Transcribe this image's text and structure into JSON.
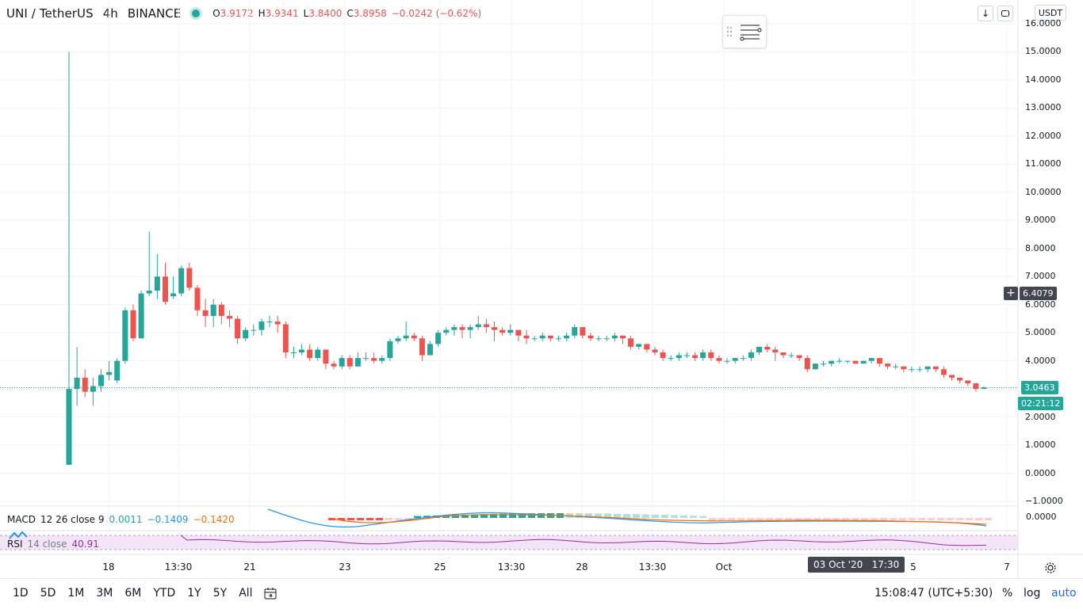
{
  "header": {
    "symbol": "UNI / TetherUS",
    "interval": "4h",
    "exchange": "BINANCE",
    "ohlc": {
      "o_key": "O",
      "o_val": "3.9172",
      "h_key": "H",
      "h_val": "3.9341",
      "l_key": "L",
      "l_val": "3.8400",
      "c_key": "C",
      "c_val": "3.8958",
      "change": "−0.0242 (−0.62%)"
    },
    "currency_button": "USDT",
    "status_color": "#26a69a"
  },
  "price_axis": {
    "ticks": [
      "16.0000",
      "15.0000",
      "14.0000",
      "13.0000",
      "12.0000",
      "11.0000",
      "10.0000",
      "9.0000",
      "8.0000",
      "7.0000",
      "6.0000",
      "5.0000",
      "4.0000",
      "3.0000",
      "2.0000",
      "1.0000",
      "0.0000",
      "−1.0000"
    ],
    "crosshair_price": "6.4079",
    "last_price": "3.0463",
    "countdown": "02:21:12"
  },
  "macd": {
    "name": "MACD",
    "params": "12 26 close 9",
    "v1": "0.0011",
    "v2": "−0.1409",
    "v3": "−0.1420",
    "axis_value": "0.0000"
  },
  "rsi": {
    "name": "RSI",
    "params": "14 close",
    "value": "40.91"
  },
  "time_axis": {
    "labels": [
      "18",
      "13:30",
      "21",
      "23",
      "25",
      "13:30",
      "28",
      "13:30",
      "Oct",
      "5",
      "7"
    ],
    "crosshair_time": "03 Oct '20   17:30"
  },
  "bottom": {
    "ranges": [
      "1D",
      "5D",
      "1M",
      "3M",
      "6M",
      "YTD",
      "1Y",
      "5Y",
      "All"
    ],
    "clock": "15:08:47 (UTC+5:30)",
    "percent": "%",
    "log": "log",
    "auto": "auto"
  },
  "colors": {
    "up": "#26a69a",
    "down": "#ef5350",
    "accent": "#2962ff",
    "rsi": "#9c27b0",
    "macd": "#2196f3",
    "signal": "#ff6d00"
  },
  "chart_data": {
    "type": "candlestick",
    "x": [
      "18",
      "13:30",
      "21",
      "23",
      "25",
      "13:30",
      "28",
      "13:30",
      "Oct",
      "5",
      "7"
    ],
    "ylim": [
      -1,
      16
    ],
    "candles": [
      [
        0.3,
        3.0,
        0.3,
        15.0
      ],
      [
        3.0,
        3.4,
        2.4,
        4.5
      ],
      [
        3.4,
        2.9,
        2.7,
        3.7
      ],
      [
        2.9,
        3.1,
        2.4,
        3.4
      ],
      [
        3.1,
        3.5,
        2.9,
        3.7
      ],
      [
        3.5,
        3.6,
        3.3,
        4.0
      ],
      [
        3.3,
        4.0,
        3.2,
        4.1
      ],
      [
        4.0,
        5.8,
        3.9,
        5.9
      ],
      [
        5.8,
        4.8,
        4.7,
        6.0
      ],
      [
        4.8,
        6.4,
        4.8,
        6.5
      ],
      [
        6.4,
        6.5,
        6.3,
        8.6
      ],
      [
        6.5,
        7.0,
        6.2,
        7.8
      ],
      [
        7.0,
        6.1,
        6.0,
        7.5
      ],
      [
        6.3,
        6.4,
        6.2,
        7.0
      ],
      [
        6.4,
        7.3,
        6.3,
        7.4
      ],
      [
        7.3,
        6.6,
        6.5,
        7.5
      ],
      [
        6.6,
        5.8,
        5.6,
        6.7
      ],
      [
        5.8,
        5.6,
        5.2,
        6.2
      ],
      [
        5.6,
        6.0,
        5.2,
        6.2
      ],
      [
        6.0,
        5.6,
        5.3,
        6.1
      ],
      [
        5.6,
        5.5,
        5.2,
        5.8
      ],
      [
        5.5,
        4.8,
        4.6,
        5.6
      ],
      [
        4.8,
        5.1,
        4.7,
        5.2
      ],
      [
        5.1,
        5.1,
        4.9,
        5.3
      ],
      [
        5.1,
        5.4,
        4.9,
        5.5
      ],
      [
        5.4,
        5.4,
        5.2,
        5.6
      ],
      [
        5.4,
        5.3,
        5.0,
        5.6
      ],
      [
        5.3,
        4.3,
        4.1,
        5.4
      ],
      [
        4.3,
        4.3,
        4.1,
        4.5
      ],
      [
        4.3,
        4.4,
        4.2,
        4.6
      ],
      [
        4.4,
        4.1,
        4.0,
        4.6
      ],
      [
        4.1,
        4.4,
        4.0,
        4.5
      ],
      [
        4.4,
        3.9,
        3.7,
        4.4
      ],
      [
        3.9,
        3.8,
        3.7,
        4.0
      ],
      [
        3.8,
        4.1,
        3.7,
        4.2
      ],
      [
        4.1,
        3.8,
        3.7,
        4.2
      ],
      [
        3.8,
        4.1,
        3.8,
        4.3
      ],
      [
        4.1,
        4.1,
        4.0,
        4.3
      ],
      [
        4.1,
        4.0,
        3.9,
        4.3
      ],
      [
        4.0,
        4.1,
        3.9,
        4.2
      ],
      [
        4.1,
        4.7,
        4.0,
        4.8
      ],
      [
        4.7,
        4.8,
        4.6,
        4.9
      ],
      [
        4.8,
        4.9,
        4.7,
        5.4
      ],
      [
        4.9,
        4.8,
        4.7,
        5.0
      ],
      [
        4.8,
        4.2,
        4.0,
        4.9
      ],
      [
        4.2,
        4.6,
        4.2,
        4.7
      ],
      [
        4.6,
        5.0,
        4.5,
        5.1
      ],
      [
        5.0,
        5.1,
        4.9,
        5.2
      ],
      [
        5.1,
        5.2,
        4.9,
        5.3
      ],
      [
        5.2,
        5.1,
        4.8,
        5.3
      ],
      [
        5.1,
        5.2,
        4.8,
        5.3
      ],
      [
        5.2,
        5.3,
        5.1,
        5.6
      ],
      [
        5.3,
        5.2,
        5.0,
        5.5
      ],
      [
        5.2,
        5.1,
        4.7,
        5.4
      ],
      [
        5.1,
        5.0,
        4.9,
        5.2
      ],
      [
        5.0,
        5.1,
        4.9,
        5.3
      ],
      [
        5.1,
        4.9,
        4.7,
        5.1
      ],
      [
        4.9,
        4.8,
        4.6,
        5.1
      ],
      [
        4.8,
        4.8,
        4.7,
        4.9
      ],
      [
        4.8,
        4.9,
        4.7,
        5.0
      ],
      [
        4.9,
        4.8,
        4.7,
        4.9
      ],
      [
        4.8,
        4.8,
        4.7,
        4.9
      ],
      [
        4.8,
        4.9,
        4.7,
        5.0
      ],
      [
        4.9,
        5.2,
        4.8,
        5.3
      ],
      [
        5.2,
        4.9,
        4.8,
        5.2
      ],
      [
        4.9,
        4.8,
        4.7,
        5.0
      ],
      [
        4.8,
        4.8,
        4.7,
        4.9
      ],
      [
        4.8,
        4.8,
        4.7,
        4.9
      ],
      [
        4.8,
        4.9,
        4.7,
        5.0
      ],
      [
        4.9,
        4.8,
        4.6,
        4.9
      ],
      [
        4.8,
        4.5,
        4.4,
        4.9
      ],
      [
        4.5,
        4.6,
        4.4,
        4.6
      ],
      [
        4.6,
        4.4,
        4.3,
        4.6
      ],
      [
        4.4,
        4.3,
        4.2,
        4.5
      ],
      [
        4.3,
        4.1,
        4.0,
        4.4
      ],
      [
        4.1,
        4.1,
        4.0,
        4.2
      ],
      [
        4.1,
        4.2,
        4.0,
        4.3
      ],
      [
        4.2,
        4.2,
        4.1,
        4.3
      ],
      [
        4.2,
        4.1,
        4.0,
        4.3
      ],
      [
        4.1,
        4.3,
        4.0,
        4.4
      ],
      [
        4.3,
        4.1,
        4.0,
        4.4
      ],
      [
        4.1,
        4.0,
        3.9,
        4.2
      ],
      [
        4.0,
        4.0,
        3.9,
        4.1
      ],
      [
        4.0,
        4.1,
        3.9,
        4.1
      ],
      [
        4.1,
        4.1,
        4.0,
        4.2
      ],
      [
        4.1,
        4.3,
        4.0,
        4.4
      ],
      [
        4.3,
        4.5,
        4.2,
        4.5
      ],
      [
        4.5,
        4.4,
        4.3,
        4.6
      ],
      [
        4.4,
        4.3,
        4.0,
        4.5
      ],
      [
        4.3,
        4.2,
        4.1,
        4.3
      ],
      [
        4.2,
        4.2,
        4.1,
        4.3
      ],
      [
        4.2,
        4.1,
        4.0,
        4.2
      ],
      [
        4.1,
        3.7,
        3.6,
        4.2
      ],
      [
        3.7,
        3.9,
        3.7,
        3.9
      ],
      [
        3.9,
        3.9,
        3.8,
        4.0
      ],
      [
        3.9,
        4.0,
        3.8,
        4.0
      ],
      [
        4.0,
        4.0,
        3.9,
        4.1
      ],
      [
        4.0,
        4.0,
        3.9,
        4.0
      ],
      [
        4.0,
        3.9,
        3.9,
        4.0
      ],
      [
        3.9,
        4.0,
        3.9,
        4.0
      ],
      [
        4.0,
        4.1,
        3.9,
        4.1
      ],
      [
        4.1,
        3.9,
        3.8,
        4.1
      ],
      [
        3.9,
        3.8,
        3.7,
        3.9
      ],
      [
        3.8,
        3.8,
        3.7,
        3.9
      ],
      [
        3.8,
        3.7,
        3.6,
        3.8
      ],
      [
        3.7,
        3.7,
        3.6,
        3.8
      ],
      [
        3.7,
        3.7,
        3.6,
        3.8
      ],
      [
        3.7,
        3.8,
        3.6,
        3.8
      ],
      [
        3.8,
        3.7,
        3.6,
        3.8
      ],
      [
        3.7,
        3.5,
        3.4,
        3.8
      ],
      [
        3.5,
        3.4,
        3.3,
        3.5
      ],
      [
        3.4,
        3.3,
        3.2,
        3.4
      ],
      [
        3.3,
        3.2,
        3.1,
        3.3
      ],
      [
        3.2,
        3.0,
        2.9,
        3.2
      ],
      [
        3.0,
        3.05,
        3.0,
        3.1
      ]
    ]
  }
}
